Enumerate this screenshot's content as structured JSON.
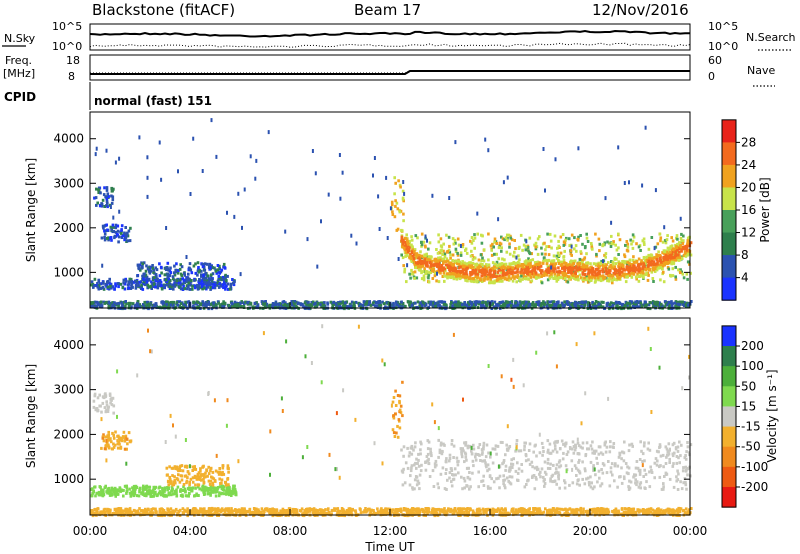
{
  "header": {
    "title": "Blackstone (fitACF)",
    "beam": "Beam 17",
    "date": "12/Nov/2016"
  },
  "noise_panel": {
    "left_label": "N.Sky",
    "right_label": "N.Search",
    "ticks_left": [
      "10^5",
      "10^0"
    ],
    "ticks_right": [
      "10^5",
      "10^0"
    ],
    "right_line_style": "dotted"
  },
  "freq_panel": {
    "left_label_1": "Freq.",
    "left_label_2": "[MHz]",
    "right_label": "Nave",
    "ticks_left": [
      "18",
      "8"
    ],
    "ticks_right": [
      "60",
      "0"
    ],
    "right_line_style": "dotted"
  },
  "cpid": {
    "label": "CPID",
    "value": "normal (fast) 151"
  },
  "x_axis": {
    "label": "Time UT",
    "ticks": [
      "00:00",
      "04:00",
      "08:00",
      "12:00",
      "16:00",
      "20:00",
      "00:00"
    ],
    "range_hours": [
      0,
      24
    ]
  },
  "colors": {
    "power": [
      "#1a33ff",
      "#2b52b0",
      "#2e7f4c",
      "#48a05a",
      "#c8e34a",
      "#f0a21f",
      "#f36a1e",
      "#e8231a"
    ],
    "velocity": [
      "#1a33ff",
      "#2e7f4c",
      "#4caf3a",
      "#7fd94f",
      "#c9c9c4",
      "#f2b02e",
      "#f08a1e",
      "#ee5a12",
      "#e81a12"
    ]
  },
  "chart_data": [
    {
      "type": "heatmap",
      "ylabel": "Slant Range [km]",
      "xlabel": "",
      "y_ticks": [
        "1000",
        "2000",
        "3000",
        "4000"
      ],
      "ylim": [
        200,
        4600
      ],
      "colorbar": {
        "label": "Power [dB]",
        "ticks": [
          "4",
          "8",
          "12",
          "16",
          "20",
          "24",
          "28"
        ],
        "range": [
          0,
          32
        ]
      },
      "echo_regions": [
        {
          "t0": 0.0,
          "t1": 24.0,
          "r0": 220,
          "r1": 380,
          "value": 8
        },
        {
          "t0": 0.0,
          "t1": 5.8,
          "r0": 650,
          "r1": 880,
          "value": 6
        },
        {
          "t0": 0.1,
          "t1": 0.9,
          "r0": 2500,
          "r1": 2950,
          "value": 6
        },
        {
          "t0": 0.4,
          "t1": 1.6,
          "r0": 1700,
          "r1": 2100,
          "value": 5
        },
        {
          "t0": 1.8,
          "t1": 5.5,
          "r0": 850,
          "r1": 1250,
          "value": 6
        },
        {
          "t0": 12.0,
          "t1": 12.5,
          "r0": 1900,
          "r1": 3200,
          "value": 20
        },
        {
          "t0": 12.4,
          "t1": 24.0,
          "r0": 800,
          "r1": 1900,
          "value": 18
        }
      ],
      "main_band_center_km": [
        [
          12.4,
          1800
        ],
        [
          13.0,
          1300
        ],
        [
          14.0,
          1150
        ],
        [
          15.0,
          1050
        ],
        [
          16.0,
          1000
        ],
        [
          17.0,
          1050
        ],
        [
          18.0,
          1100
        ],
        [
          19.0,
          1100
        ],
        [
          20.0,
          1050
        ],
        [
          21.0,
          1050
        ],
        [
          22.0,
          1150
        ],
        [
          23.0,
          1350
        ],
        [
          24.0,
          1650
        ]
      ]
    },
    {
      "type": "heatmap",
      "ylabel": "Slant Range [km]",
      "xlabel": "Time UT",
      "y_ticks": [
        "1000",
        "2000",
        "3000",
        "4000"
      ],
      "ylim": [
        200,
        4600
      ],
      "colorbar": {
        "label": "Velocity [m s⁻¹]",
        "ticks": [
          "200",
          "100",
          "50",
          "15",
          "-15",
          "-50",
          "-100",
          "-200"
        ],
        "range": [
          -250,
          250
        ]
      },
      "echo_regions": [
        {
          "t0": 0.0,
          "t1": 24.0,
          "r0": 220,
          "r1": 380,
          "value": -50
        },
        {
          "t0": 0.0,
          "t1": 5.8,
          "r0": 650,
          "r1": 880,
          "value": 50
        },
        {
          "t0": 0.1,
          "t1": 0.9,
          "r0": 2500,
          "r1": 2950,
          "value": 0
        },
        {
          "t0": 0.4,
          "t1": 1.6,
          "r0": 1700,
          "r1": 2100,
          "value": -70
        },
        {
          "t0": 3.0,
          "t1": 5.5,
          "r0": 900,
          "r1": 1350,
          "value": -60
        },
        {
          "t0": 12.0,
          "t1": 12.5,
          "r0": 1900,
          "r1": 3200,
          "value": -80
        },
        {
          "t0": 12.4,
          "t1": 24.0,
          "r0": 800,
          "r1": 1900,
          "value": 0
        }
      ]
    }
  ]
}
